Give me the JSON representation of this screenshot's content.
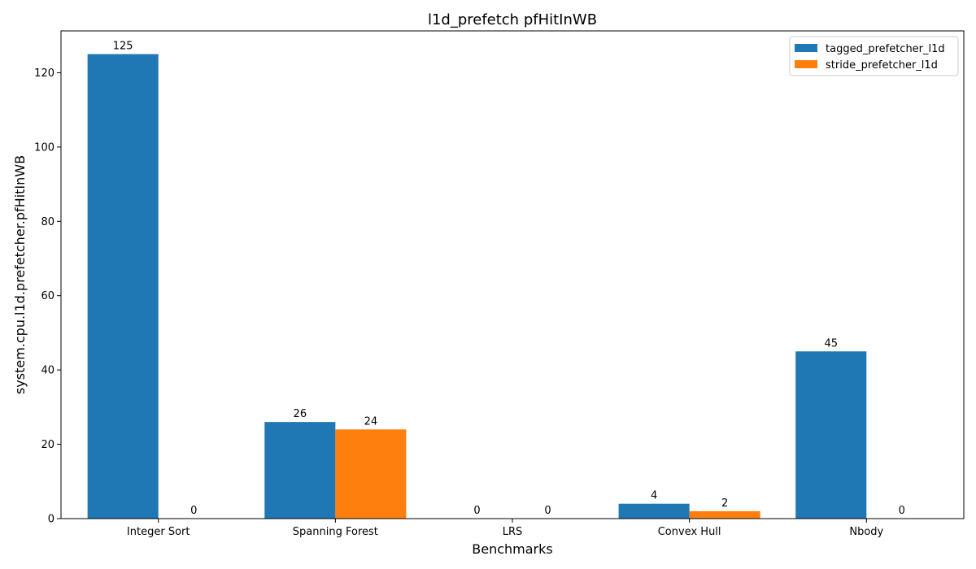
{
  "chart_data": {
    "type": "bar",
    "title": "l1d_prefetch pfHitInWB",
    "xlabel": "Benchmarks",
    "ylabel": "system.cpu.l1d.prefetcher.pfHitInWB",
    "categories": [
      "Integer Sort",
      "Spanning Forest",
      "LRS",
      "Convex Hull",
      "Nbody"
    ],
    "series": [
      {
        "name": "tagged_prefetcher_l1d",
        "color": "#1f77b4",
        "values": [
          125,
          26,
          0,
          4,
          45
        ]
      },
      {
        "name": "stride_prefetcher_l1d",
        "color": "#ff7f0e",
        "values": [
          0,
          24,
          0,
          2,
          0
        ]
      }
    ],
    "ylim": [
      0,
      131.25
    ],
    "yticks": [
      0,
      20,
      40,
      60,
      80,
      100,
      120
    ],
    "grid": false,
    "legend_position": "top-right",
    "data_labels": true
  }
}
